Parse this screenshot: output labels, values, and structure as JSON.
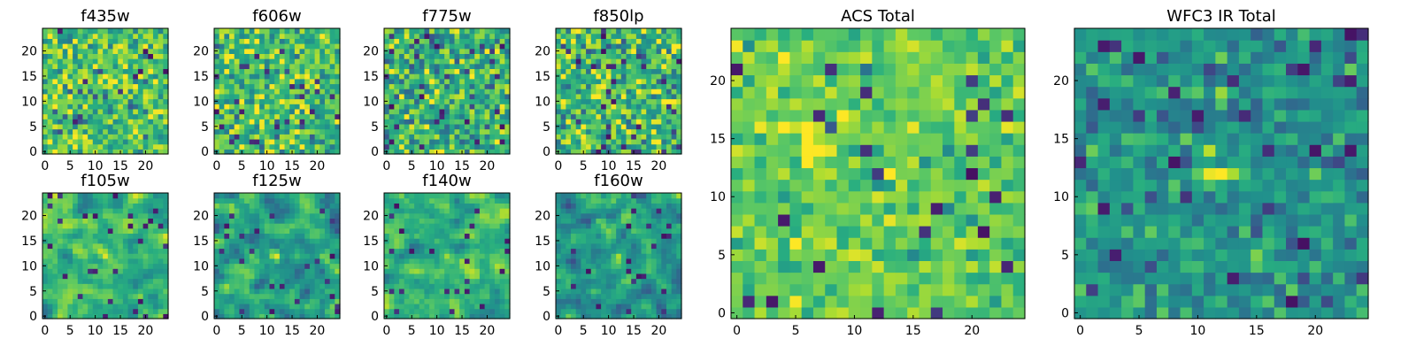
{
  "chart_data": {
    "type": "heatmap",
    "colormap": "viridis",
    "panels": [
      {
        "title": "f435w",
        "grid": 25,
        "xticks": [
          0,
          5,
          10,
          15,
          20
        ],
        "yticks": [
          0,
          5,
          10,
          15,
          20
        ],
        "value_range": [
          0,
          1
        ]
      },
      {
        "title": "f606w",
        "grid": 25,
        "xticks": [
          0,
          5,
          10,
          15,
          20
        ],
        "yticks": [
          0,
          5,
          10,
          15,
          20
        ],
        "value_range": [
          0,
          1
        ]
      },
      {
        "title": "f775w",
        "grid": 25,
        "xticks": [
          0,
          5,
          10,
          15,
          20
        ],
        "yticks": [
          0,
          5,
          10,
          15,
          20
        ],
        "value_range": [
          0,
          1
        ]
      },
      {
        "title": "f850lp",
        "grid": 25,
        "xticks": [
          0,
          5,
          10,
          15,
          20
        ],
        "yticks": [
          0,
          5,
          10,
          15,
          20
        ],
        "value_range": [
          0,
          1
        ]
      },
      {
        "title": "f105w",
        "grid": 25,
        "xticks": [
          0,
          5,
          10,
          15,
          20
        ],
        "yticks": [
          0,
          5,
          10,
          15,
          20
        ],
        "value_range": [
          0,
          1
        ]
      },
      {
        "title": "f125w",
        "grid": 25,
        "xticks": [
          0,
          5,
          10,
          15,
          20
        ],
        "yticks": [
          0,
          5,
          10,
          15,
          20
        ],
        "value_range": [
          0,
          1
        ]
      },
      {
        "title": "f140w",
        "grid": 25,
        "xticks": [
          0,
          5,
          10,
          15,
          20
        ],
        "yticks": [
          0,
          5,
          10,
          15,
          20
        ],
        "value_range": [
          0,
          1
        ]
      },
      {
        "title": "f160w",
        "grid": 25,
        "xticks": [
          0,
          5,
          10,
          15,
          20
        ],
        "yticks": [
          0,
          5,
          10,
          15,
          20
        ],
        "value_range": [
          0,
          1
        ]
      },
      {
        "title": "ACS Total",
        "grid": 25,
        "xticks": [
          0,
          5,
          10,
          15,
          20
        ],
        "yticks": [
          0,
          5,
          10,
          15,
          20
        ],
        "value_range": [
          0,
          1
        ]
      },
      {
        "title": "WFC3 IR Total",
        "grid": 25,
        "xticks": [
          0,
          5,
          10,
          15,
          20
        ],
        "yticks": [
          0,
          5,
          10,
          15,
          20
        ],
        "value_range": [
          0,
          1
        ]
      }
    ]
  }
}
